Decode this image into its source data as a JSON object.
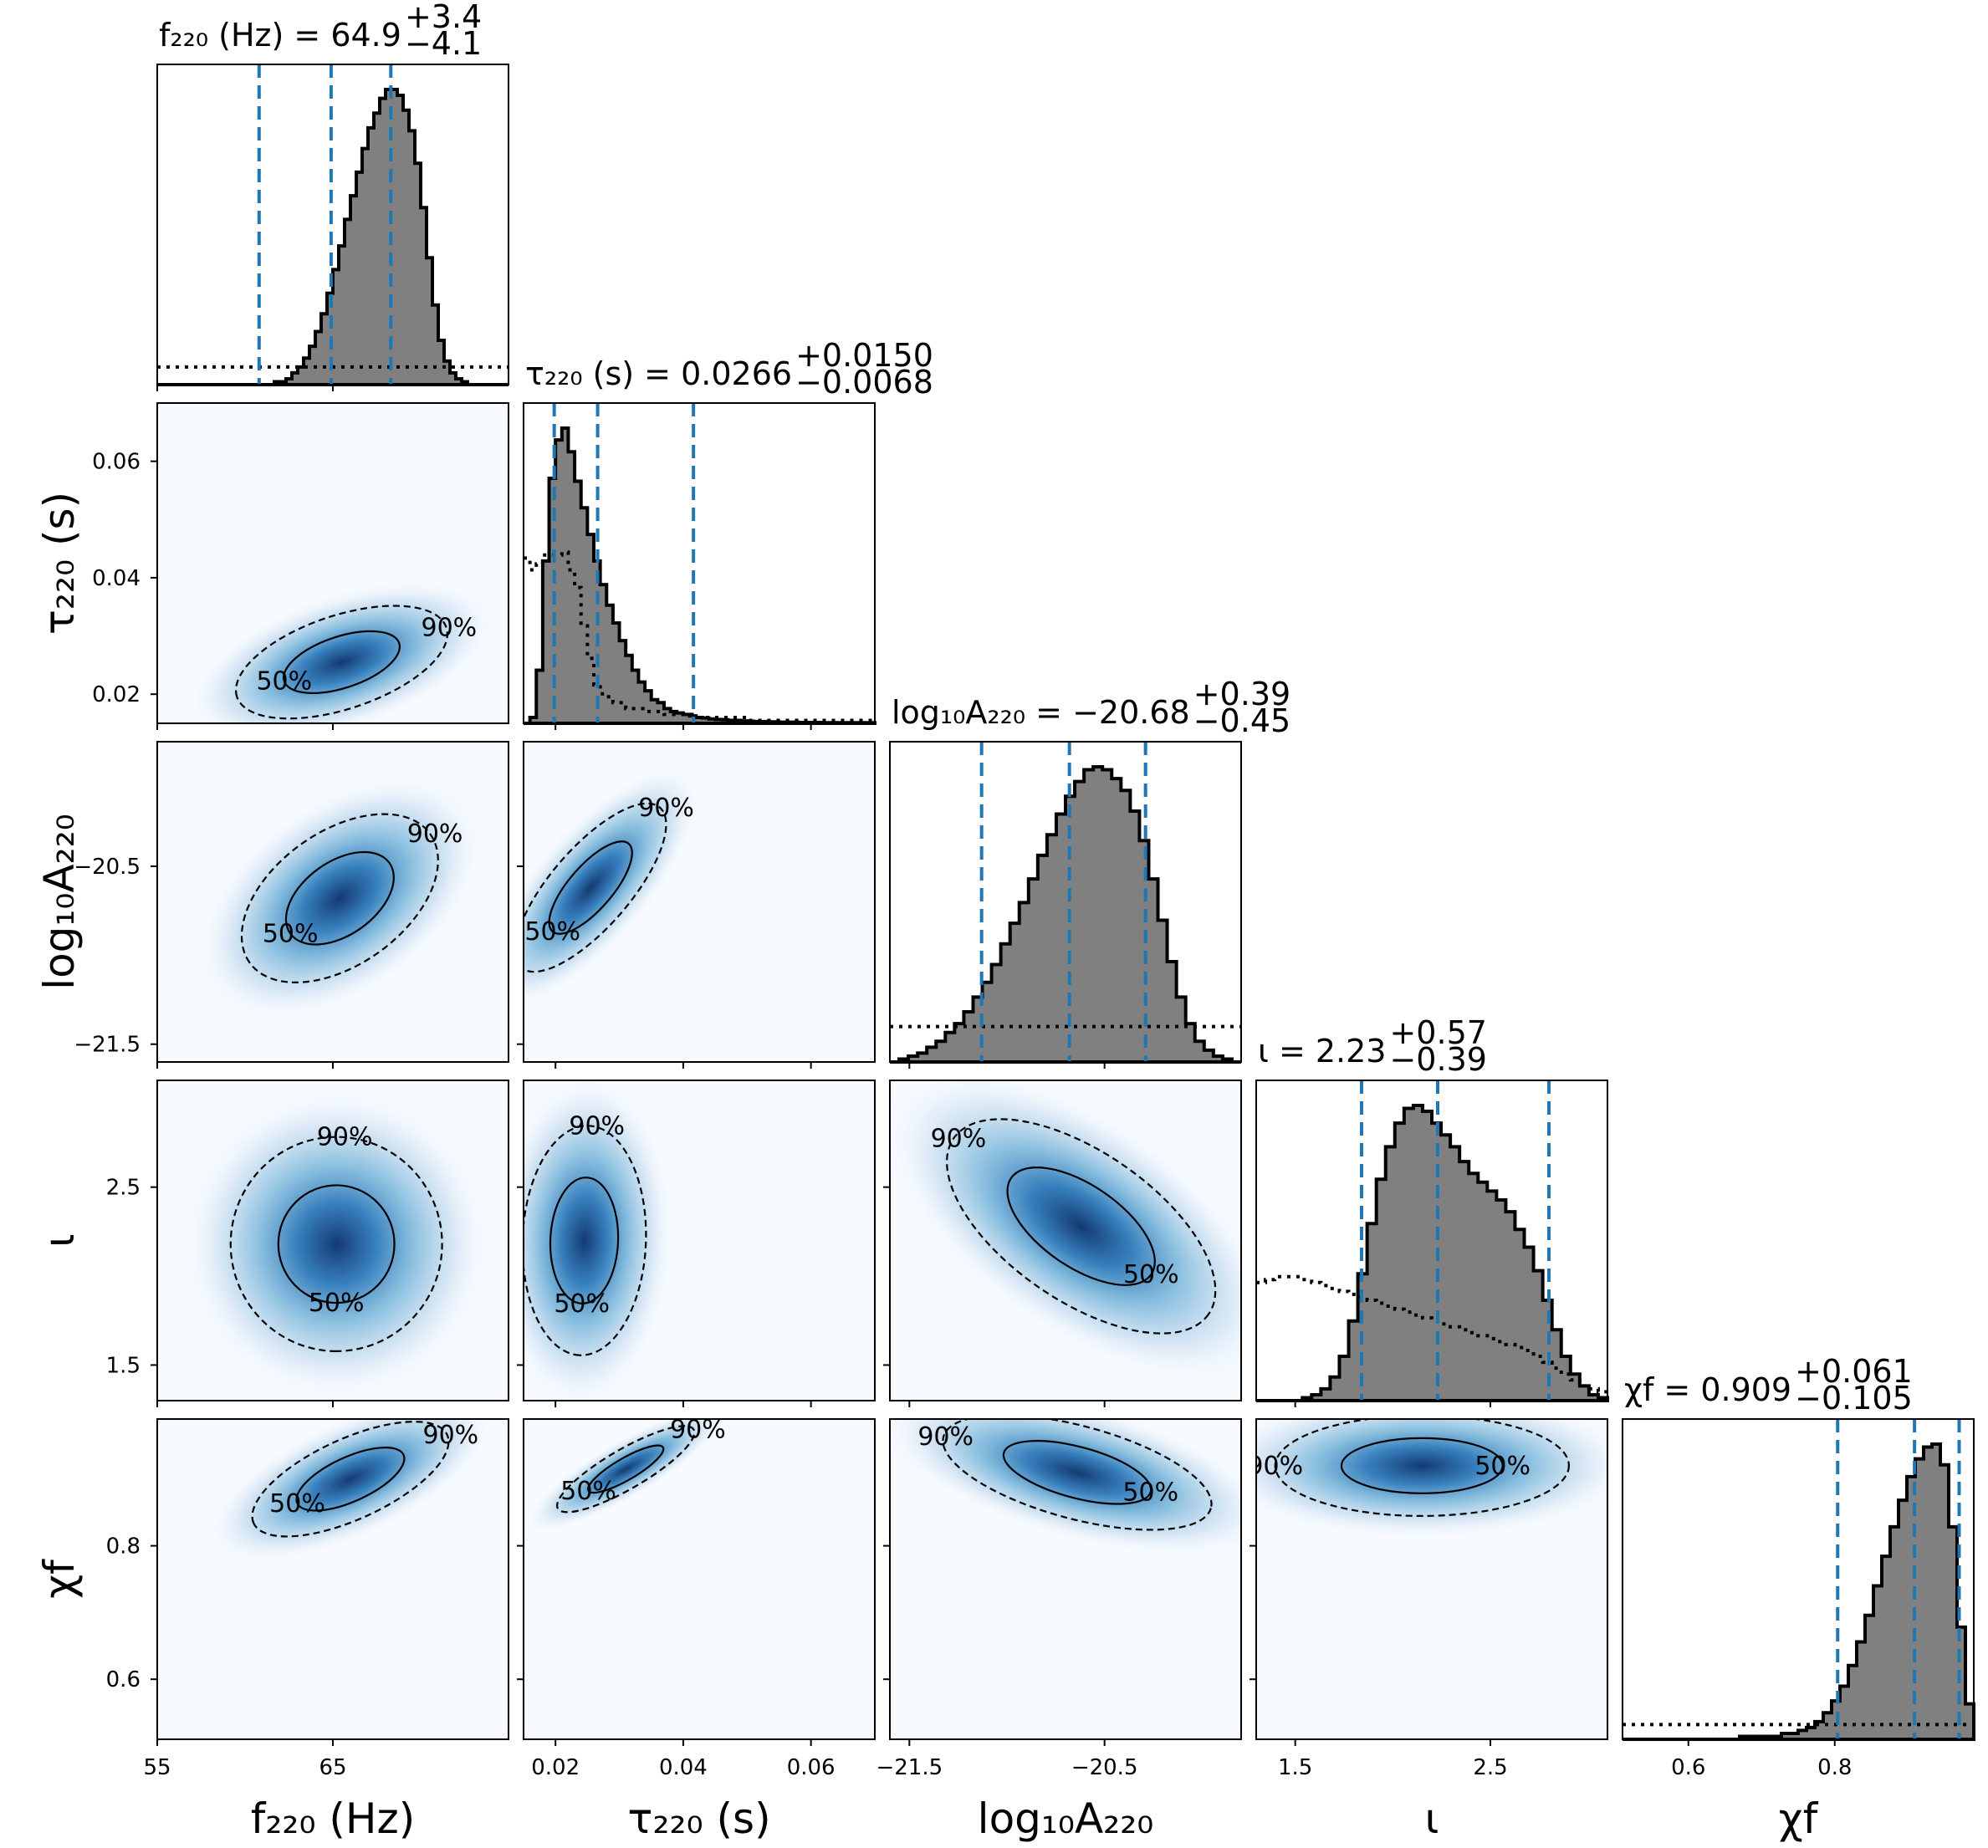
{
  "chart_data": {
    "type": "corner",
    "parameters": [
      {
        "label": "f220 (Hz)",
        "range": [
          55,
          75
        ],
        "ticks": [
          55,
          65
        ],
        "tick_labels": [
          "55",
          "65"
        ],
        "median": 64.9,
        "plus": 3.4,
        "minus": 4.1,
        "title": {
          "lhs": "f₂₂₀ (Hz) = ",
          "val": "64.9",
          "plus": "+3.4",
          "minus": "−4.1"
        },
        "xlabel": "f₂₂₀ (Hz)",
        "ylabel": ""
      },
      {
        "label": "tau220 (s)",
        "range": [
          0.015,
          0.07
        ],
        "ticks": [
          0.02,
          0.04,
          0.06
        ],
        "tick_labels": [
          "0.02",
          "0.04",
          "0.06"
        ],
        "median": 0.0266,
        "plus": 0.015,
        "minus": 0.0068,
        "title": {
          "lhs": "τ₂₂₀ (s) = ",
          "val": "0.0266",
          "plus": "+0.0150",
          "minus": "−0.0068"
        },
        "xlabel": "τ₂₂₀ (s)",
        "ylabel": "τ₂₂₀ (s)"
      },
      {
        "label": "log10 A220",
        "range": [
          -21.6,
          -19.8
        ],
        "ticks": [
          -21.5,
          -20.5
        ],
        "tick_labels": [
          "−21.5",
          "−20.5"
        ],
        "median": -20.68,
        "plus": 0.39,
        "minus": 0.45,
        "title": {
          "lhs": "log₁₀A₂₂₀ = ",
          "val": "−20.68",
          "plus": "+0.39",
          "minus": "−0.45"
        },
        "xlabel": "log₁₀A₂₂₀",
        "ylabel": "log₁₀A₂₂₀"
      },
      {
        "label": "iota",
        "range": [
          1.3,
          3.1
        ],
        "ticks": [
          1.5,
          2.5
        ],
        "tick_labels": [
          "1.5",
          "2.5"
        ],
        "median": 2.23,
        "plus": 0.57,
        "minus": 0.39,
        "title": {
          "lhs": "ι = ",
          "val": "2.23",
          "plus": "+0.57",
          "minus": "−0.39"
        },
        "xlabel": "ι",
        "ylabel": "ι"
      },
      {
        "label": "chi_f",
        "range": [
          0.51,
          0.99
        ],
        "ticks": [
          0.6,
          0.8
        ],
        "tick_labels": [
          "0.6",
          "0.8"
        ],
        "median": 0.909,
        "plus": 0.061,
        "minus": 0.105,
        "title": {
          "lhs": "χf = ",
          "val": "0.909",
          "plus": "+0.061",
          "minus": "−0.105"
        },
        "xlabel": "χf",
        "ylabel": "χf"
      }
    ],
    "contour_levels": [
      "50%",
      "90%"
    ],
    "colors": {
      "hist_fill": "#808080",
      "hist_edge": "#000000",
      "quantile_line": "#1f77b4",
      "density_dark": "#08306b",
      "density_light": "#f7fbff"
    },
    "marginals": [
      {
        "edges_range": [
          55,
          75
        ],
        "posterior": [
          0.0,
          0.0,
          0.0,
          0.0,
          0.0,
          0.0,
          0.0,
          0.0,
          0.0,
          0.0,
          0.0,
          0.0,
          0.0,
          0.0,
          0.0,
          0.0,
          0.0,
          0.0,
          0.0,
          0.0,
          0.01,
          0.01,
          0.02,
          0.04,
          0.06,
          0.09,
          0.13,
          0.18,
          0.24,
          0.31,
          0.39,
          0.47,
          0.56,
          0.64,
          0.72,
          0.8,
          0.87,
          0.92,
          0.97,
          1.0,
          1.0,
          0.98,
          0.93,
          0.86,
          0.75,
          0.6,
          0.43,
          0.27,
          0.15,
          0.08,
          0.04,
          0.02,
          0.01,
          0.0,
          0.0,
          0.0,
          0.0,
          0.0,
          0.0,
          0.0
        ],
        "prior": [
          0.06,
          0.06,
          0.06,
          0.06,
          0.06,
          0.06,
          0.06,
          0.06,
          0.06,
          0.06,
          0.06,
          0.06,
          0.06,
          0.06,
          0.06,
          0.06,
          0.06,
          0.06,
          0.06,
          0.06,
          0.06,
          0.06,
          0.06,
          0.06,
          0.06,
          0.06,
          0.06,
          0.06,
          0.06,
          0.06,
          0.06,
          0.06,
          0.06,
          0.06,
          0.06,
          0.06,
          0.06,
          0.06,
          0.06,
          0.06,
          0.06,
          0.06,
          0.06,
          0.06,
          0.06,
          0.06,
          0.06,
          0.06,
          0.06,
          0.06,
          0.06,
          0.06,
          0.06,
          0.06,
          0.06,
          0.06,
          0.06,
          0.06,
          0.06,
          0.06
        ],
        "quantiles": [
          60.8,
          64.9,
          68.3
        ]
      },
      {
        "edges_range": [
          0.015,
          0.07
        ],
        "posterior": [
          0.0,
          0.02,
          0.18,
          0.55,
          0.83,
          0.96,
          1.0,
          0.92,
          0.82,
          0.73,
          0.64,
          0.55,
          0.47,
          0.4,
          0.34,
          0.28,
          0.23,
          0.18,
          0.14,
          0.11,
          0.08,
          0.07,
          0.05,
          0.04,
          0.035,
          0.03,
          0.025,
          0.02,
          0.018,
          0.015,
          0.013,
          0.012,
          0.01,
          0.01,
          0.008,
          0.007,
          0.006,
          0.006,
          0.005,
          0.005,
          0.004,
          0.004,
          0.004,
          0.003,
          0.003,
          0.003,
          0.003,
          0.002,
          0.002,
          0.002,
          0.002,
          0.002,
          0.002,
          0.002,
          0.002
        ],
        "prior": [
          0.56,
          0.52,
          0.54,
          0.57,
          0.57,
          0.57,
          0.58,
          0.52,
          0.46,
          0.33,
          0.22,
          0.13,
          0.1,
          0.09,
          0.07,
          0.07,
          0.05,
          0.05,
          0.05,
          0.04,
          0.04,
          0.04,
          0.03,
          0.03,
          0.03,
          0.03,
          0.03,
          0.02,
          0.02,
          0.02,
          0.02,
          0.02,
          0.02,
          0.02,
          0.02,
          0.01,
          0.01,
          0.01,
          0.01,
          0.01,
          0.01,
          0.01,
          0.01,
          0.01,
          0.01,
          0.01,
          0.01,
          0.01,
          0.01,
          0.01,
          0.01,
          0.01,
          0.01,
          0.01,
          0.01
        ],
        "quantiles": [
          0.0198,
          0.0266,
          0.0416
        ]
      },
      {
        "edges_range": [
          -21.6,
          -19.8
        ],
        "posterior": [
          0.0,
          0.01,
          0.02,
          0.03,
          0.05,
          0.07,
          0.1,
          0.13,
          0.17,
          0.22,
          0.27,
          0.33,
          0.4,
          0.47,
          0.54,
          0.62,
          0.7,
          0.77,
          0.84,
          0.9,
          0.95,
          0.99,
          1.0,
          0.99,
          0.96,
          0.92,
          0.85,
          0.75,
          0.62,
          0.48,
          0.34,
          0.22,
          0.13,
          0.07,
          0.04,
          0.02,
          0.01,
          0.0
        ],
        "prior": [
          0.12,
          0.12,
          0.12,
          0.12,
          0.12,
          0.12,
          0.12,
          0.12,
          0.12,
          0.12,
          0.12,
          0.12,
          0.12,
          0.12,
          0.12,
          0.12,
          0.12,
          0.12,
          0.12,
          0.12,
          0.12,
          0.12,
          0.12,
          0.12,
          0.12,
          0.12,
          0.12,
          0.12,
          0.12,
          0.12,
          0.12,
          0.12,
          0.12,
          0.12,
          0.12,
          0.12,
          0.12,
          0.12
        ],
        "quantiles": [
          -21.13,
          -20.68,
          -20.29
        ]
      },
      {
        "edges_range": [
          1.3,
          3.1
        ],
        "posterior": [
          0.0,
          0.0,
          0.0,
          0.0,
          0.0,
          0.01,
          0.02,
          0.04,
          0.08,
          0.15,
          0.27,
          0.43,
          0.6,
          0.75,
          0.86,
          0.94,
          0.99,
          1.0,
          0.98,
          0.94,
          0.9,
          0.86,
          0.81,
          0.77,
          0.74,
          0.71,
          0.68,
          0.64,
          0.58,
          0.52,
          0.44,
          0.34,
          0.24,
          0.15,
          0.09,
          0.05,
          0.02,
          0.01
        ],
        "prior": [
          0.4,
          0.41,
          0.42,
          0.42,
          0.42,
          0.41,
          0.4,
          0.39,
          0.38,
          0.37,
          0.36,
          0.35,
          0.34,
          0.33,
          0.32,
          0.31,
          0.3,
          0.29,
          0.28,
          0.27,
          0.26,
          0.25,
          0.24,
          0.23,
          0.22,
          0.21,
          0.2,
          0.19,
          0.18,
          0.17,
          0.15,
          0.13,
          0.11,
          0.09,
          0.07,
          0.05,
          0.04,
          0.03
        ],
        "quantiles": [
          1.84,
          2.23,
          2.8
        ]
      },
      {
        "edges_range": [
          0.51,
          0.99
        ],
        "posterior": [
          0.0,
          0.0,
          0.0,
          0.0,
          0.0,
          0.0,
          0.0,
          0.0,
          0.0,
          0.0,
          0.0,
          0.0,
          0.0,
          0.0,
          0.01,
          0.01,
          0.01,
          0.01,
          0.01,
          0.02,
          0.02,
          0.03,
          0.04,
          0.06,
          0.09,
          0.13,
          0.18,
          0.25,
          0.33,
          0.42,
          0.52,
          0.62,
          0.72,
          0.81,
          0.89,
          0.95,
          0.99,
          1.0,
          0.93,
          0.72,
          0.38,
          0.12
        ],
        "prior": [
          0.05,
          0.05,
          0.05,
          0.05,
          0.05,
          0.05,
          0.05,
          0.05,
          0.05,
          0.05,
          0.05,
          0.05,
          0.05,
          0.05,
          0.05,
          0.05,
          0.05,
          0.05,
          0.05,
          0.05,
          0.05,
          0.05,
          0.05,
          0.05,
          0.05,
          0.05,
          0.05,
          0.05,
          0.05,
          0.05,
          0.05,
          0.05,
          0.05,
          0.05,
          0.05,
          0.05,
          0.05,
          0.05,
          0.05,
          0.05,
          0.05,
          0.05
        ],
        "quantiles": [
          0.804,
          0.909,
          0.97
        ]
      }
    ],
    "joint": [
      {
        "row": 1,
        "col": 0,
        "mean": [
          65.5,
          0.0255
        ],
        "sd": [
          2.8,
          0.0045
        ],
        "rho": 0.5
      },
      {
        "row": 2,
        "col": 0,
        "mean": [
          65.4,
          -20.68
        ],
        "sd": [
          2.6,
          0.22
        ],
        "rho": 0.45
      },
      {
        "row": 2,
        "col": 1,
        "mean": [
          0.0255,
          -20.62
        ],
        "sd": [
          0.0055,
          0.22
        ],
        "rho": 0.75
      },
      {
        "row": 3,
        "col": 0,
        "mean": [
          65.2,
          2.18
        ],
        "sd": [
          2.8,
          0.28
        ],
        "rho": 0.0
      },
      {
        "row": 3,
        "col": 1,
        "mean": [
          0.0245,
          2.2
        ],
        "sd": [
          0.0045,
          0.3
        ],
        "rho": 0.05
      },
      {
        "row": 3,
        "col": 2,
        "mean": [
          -20.62,
          2.28
        ],
        "sd": [
          0.32,
          0.28
        ],
        "rho": -0.6
      },
      {
        "row": 4,
        "col": 0,
        "mean": [
          66.0,
          0.9
        ],
        "sd": [
          2.6,
          0.04
        ],
        "rho": 0.65
      },
      {
        "row": 4,
        "col": 1,
        "mean": [
          0.031,
          0.915
        ],
        "sd": [
          0.005,
          0.03
        ],
        "rho": 0.85
      },
      {
        "row": 4,
        "col": 2,
        "mean": [
          -20.64,
          0.91
        ],
        "sd": [
          0.32,
          0.04
        ],
        "rho": -0.55
      },
      {
        "row": 4,
        "col": 3,
        "mean": [
          2.15,
          0.92
        ],
        "sd": [
          0.35,
          0.035
        ],
        "rho": 0.0
      }
    ]
  }
}
